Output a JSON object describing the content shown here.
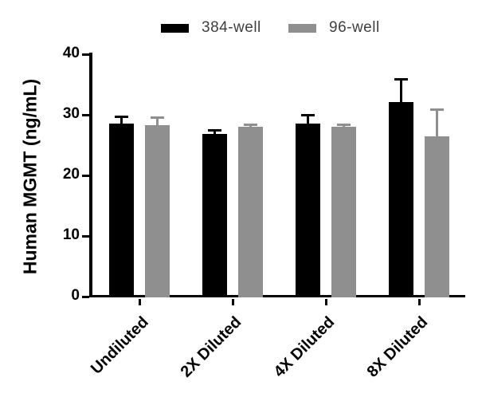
{
  "chart_data": {
    "type": "bar",
    "title": "",
    "xlabel": "",
    "ylabel": "Human MGMT (ng/mL)",
    "ylim": [
      0,
      40
    ],
    "yticks": [
      0,
      10,
      20,
      30,
      40
    ],
    "categories": [
      "Undiluted",
      "2X Diluted",
      "4X Diluted",
      "8X Diluted"
    ],
    "series": [
      {
        "name": "384-well",
        "color": "#000000",
        "values": [
          28.6,
          26.8,
          28.6,
          32.1
        ],
        "errors": [
          1.1,
          0.7,
          1.3,
          3.7
        ]
      },
      {
        "name": "96-well",
        "color": "#8f8f8f",
        "values": [
          28.3,
          28.0,
          28.0,
          26.4
        ],
        "errors": [
          1.2,
          0.4,
          0.3,
          4.4
        ]
      }
    ],
    "error_bars": "upper_sd",
    "legend_position": "top",
    "grid": false,
    "background": "#ffffff"
  }
}
